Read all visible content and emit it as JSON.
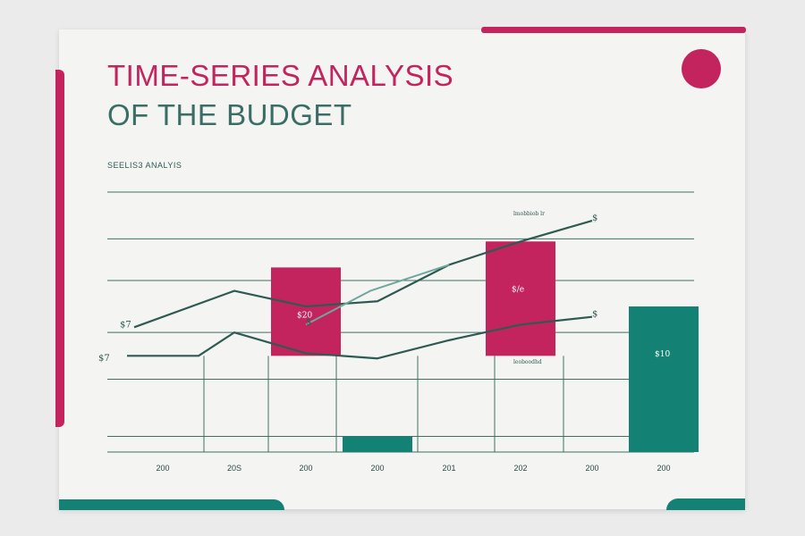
{
  "header": {
    "title_line1": "TIME-SERIES ANALYSIS",
    "title_line2": "OF THE BUDGET",
    "subtitle": "SEELIS3 ANALYIS"
  },
  "colors": {
    "magenta": "#c3245d",
    "teal": "#138173",
    "line": "#2f5a52",
    "grid": "#3f6f66"
  },
  "chart_data": {
    "type": "bar",
    "title": "TIME-SERIES ANALYSIS OF THE BUDGET",
    "subtitle": "SEELIS3 ANALYIS",
    "xlabel": "",
    "ylabel": "",
    "ylim": [
      0,
      100
    ],
    "grid": true,
    "categories": [
      "200",
      "20S",
      "200",
      "200",
      "201",
      "202",
      "200",
      "200"
    ],
    "bars": [
      {
        "category_index": 2,
        "color": "#c3245d",
        "low": 37,
        "high": 71,
        "label": "$20"
      },
      {
        "category_index": 3,
        "color": "#138173",
        "low": 0,
        "high": 6,
        "label": ""
      },
      {
        "category_index": 5,
        "color": "#c3245d",
        "low": 37,
        "high": 81,
        "label": "$/e"
      },
      {
        "category_index": 7,
        "color": "#138173",
        "low": 0,
        "high": 56,
        "label": "$10"
      }
    ],
    "series": [
      {
        "name": "upper",
        "color": "#2f5a52",
        "x": [
          0.6,
          2.0,
          3.0,
          4.0,
          5.0,
          6.0,
          7.0
        ],
        "y": [
          48,
          62,
          56,
          58,
          72,
          81,
          89
        ]
      },
      {
        "name": "lower",
        "color": "#2f5a52",
        "x": [
          0.5,
          1.5,
          2.0,
          3.0,
          4.0,
          5.0,
          6.0,
          7.0
        ],
        "y": [
          37,
          37,
          46,
          38,
          36,
          43,
          49,
          52
        ]
      },
      {
        "name": "trend",
        "color": "#6fa79c",
        "x": [
          3.0,
          3.9,
          5.0
        ],
        "y": [
          49,
          62,
          72
        ]
      }
    ],
    "annotations": [
      {
        "text": "$7",
        "x": 0.4,
        "y": 48
      },
      {
        "text": "$7",
        "x": 0.1,
        "y": 35
      },
      {
        "text": "$",
        "x": 3.0,
        "y": 49
      },
      {
        "text": "$",
        "x": 7.0,
        "y": 89
      },
      {
        "text": "$",
        "x": 7.0,
        "y": 52
      },
      {
        "text": "lmobbiob lr",
        "x": 5.9,
        "y": 91
      },
      {
        "text": "leoboodhd",
        "x": 5.9,
        "y": 34
      }
    ]
  }
}
